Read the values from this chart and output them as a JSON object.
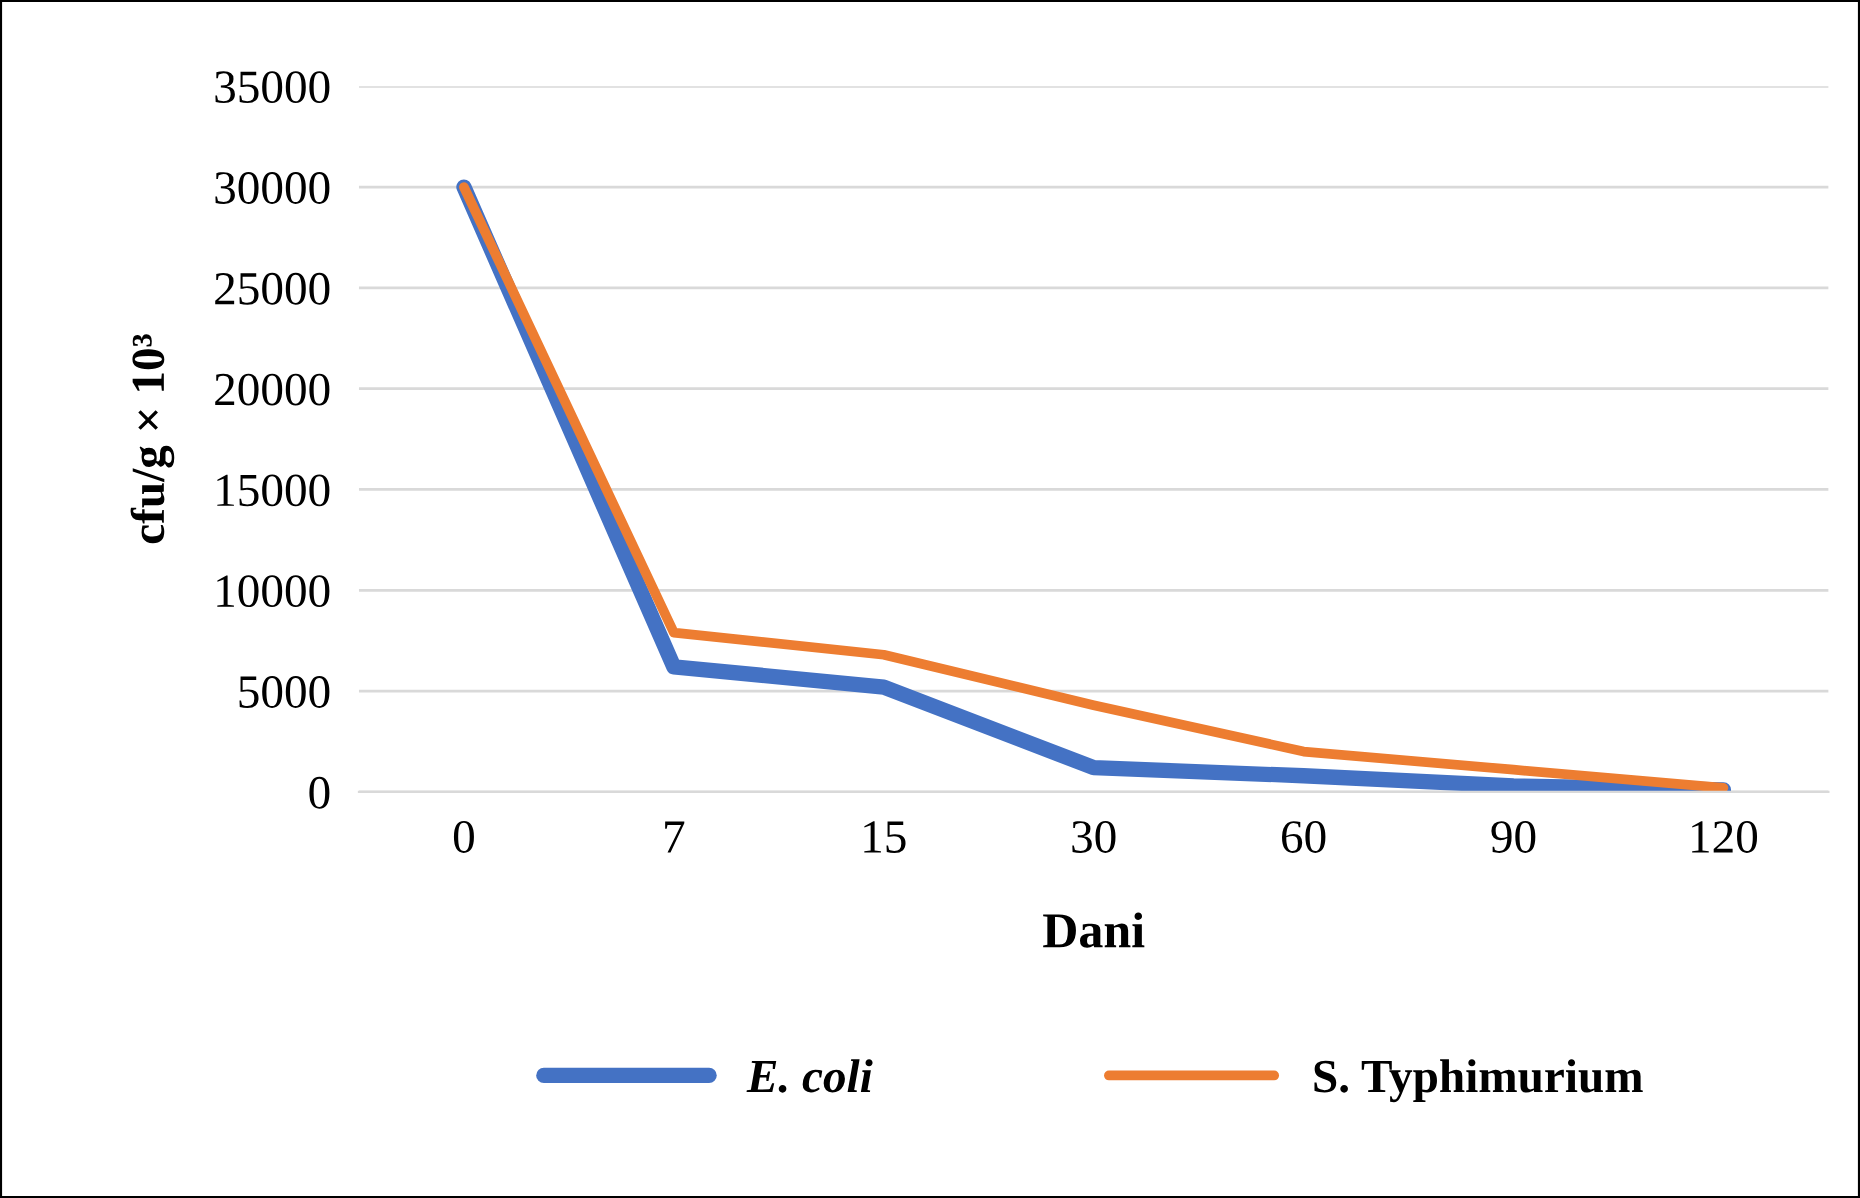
{
  "chart_data": {
    "type": "line",
    "xlabel": "Dani",
    "ylabel": "cfu/g × 10³",
    "categories": [
      "0",
      "7",
      "15",
      "30",
      "60",
      "90",
      "120"
    ],
    "series": [
      {
        "name": "E. coli",
        "color": "#4472c4",
        "values": [
          30000,
          6200,
          5200,
          1200,
          800,
          300,
          100
        ]
      },
      {
        "name": "S. Typhimurium",
        "color": "#ed7d31",
        "values": [
          30000,
          7900,
          6800,
          4300,
          2000,
          1100,
          200
        ]
      }
    ],
    "ylim": [
      0,
      35000
    ],
    "yticks": [
      0,
      5000,
      10000,
      15000,
      20000,
      25000,
      30000,
      35000
    ],
    "grid": "y",
    "legend": "bottom",
    "marker": "none",
    "line_style": "solid"
  }
}
